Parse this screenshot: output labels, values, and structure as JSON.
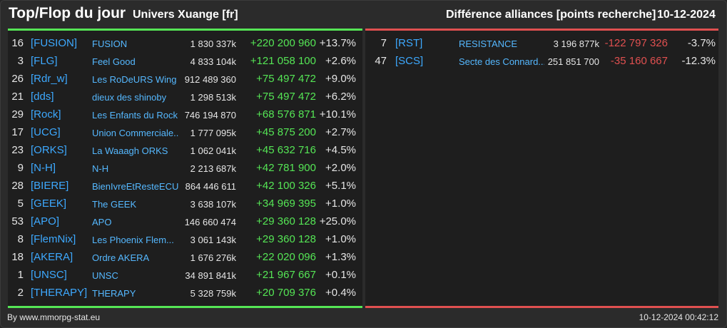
{
  "header": {
    "title": "Top/Flop du jour",
    "universe": "Univers Xuange [fr]",
    "subtitle": "Différence alliances [points recherche]",
    "date": "10-12-2024"
  },
  "colors": {
    "top_accent": "#55e655",
    "flop_accent": "#e05050",
    "tag_color": "#3da9ff"
  },
  "top": [
    {
      "rank": "16",
      "tag": "[FUSION]",
      "name": "FUSION",
      "points": "1 830 337k",
      "delta": "+220 200 960",
      "pct": "+13.7%"
    },
    {
      "rank": "3",
      "tag": "[FLG]",
      "name": "Feel Good",
      "points": "4 833 104k",
      "delta": "+121 058 100",
      "pct": "+2.6%"
    },
    {
      "rank": "26",
      "tag": "[Rdr_w]",
      "name": "Les RoDeURS Wing",
      "points": "912 489 360",
      "delta": "+75 497 472",
      "pct": "+9.0%"
    },
    {
      "rank": "21",
      "tag": "[dds]",
      "name": "dieux des shinoby",
      "points": "1 298 513k",
      "delta": "+75 497 472",
      "pct": "+6.2%"
    },
    {
      "rank": "29",
      "tag": "[Rock]",
      "name": "Les Enfants du Rock",
      "points": "746 194 870",
      "delta": "+68 576 871",
      "pct": "+10.1%"
    },
    {
      "rank": "17",
      "tag": "[UCG]",
      "name": "Union Commerciale...",
      "points": "1 777 095k",
      "delta": "+45 875 200",
      "pct": "+2.7%"
    },
    {
      "rank": "23",
      "tag": "[ORKS]",
      "name": "La Waaagh ORKS",
      "points": "1 062 041k",
      "delta": "+45 632 716",
      "pct": "+4.5%"
    },
    {
      "rank": "9",
      "tag": "[N-H]",
      "name": "N-H",
      "points": "2 213 687k",
      "delta": "+42 781 900",
      "pct": "+2.0%"
    },
    {
      "rank": "28",
      "tag": "[BIERE]",
      "name": "BienIvreEtResteECU",
      "points": "864 446 611",
      "delta": "+42 100 326",
      "pct": "+5.1%"
    },
    {
      "rank": "5",
      "tag": "[GEEK]",
      "name": "The GEEK",
      "points": "3 638 107k",
      "delta": "+34 969 395",
      "pct": "+1.0%"
    },
    {
      "rank": "53",
      "tag": "[APO]",
      "name": "APO",
      "points": "146 660 474",
      "delta": "+29 360 128",
      "pct": "+25.0%"
    },
    {
      "rank": "8",
      "tag": "[FlemNix]",
      "name": "Les Phoenix Flem...",
      "points": "3 061 143k",
      "delta": "+29 360 128",
      "pct": "+1.0%"
    },
    {
      "rank": "18",
      "tag": "[AKERA]",
      "name": "Ordre AKERA",
      "points": "1 676 276k",
      "delta": "+22 020 096",
      "pct": "+1.3%"
    },
    {
      "rank": "1",
      "tag": "[UNSC]",
      "name": "UNSC",
      "points": "34 891 841k",
      "delta": "+21 967 667",
      "pct": "+0.1%"
    },
    {
      "rank": "2",
      "tag": "[THERAPY]",
      "name": "THERAPY",
      "points": "5 328 759k",
      "delta": "+20 709 376",
      "pct": "+0.4%"
    }
  ],
  "flop": [
    {
      "rank": "7",
      "tag": "[RST]",
      "name": "RESISTANCE",
      "points": "3 196 877k",
      "delta": "-122 797 326",
      "pct": "-3.7%"
    },
    {
      "rank": "47",
      "tag": "[SCS]",
      "name": "Secte des Connard...",
      "points": "251 851 700",
      "delta": "-35 160 667",
      "pct": "-12.3%"
    }
  ],
  "footer": {
    "source": "By www.mmorpg-stat.eu",
    "timestamp": "10-12-2024 00:42:12"
  }
}
